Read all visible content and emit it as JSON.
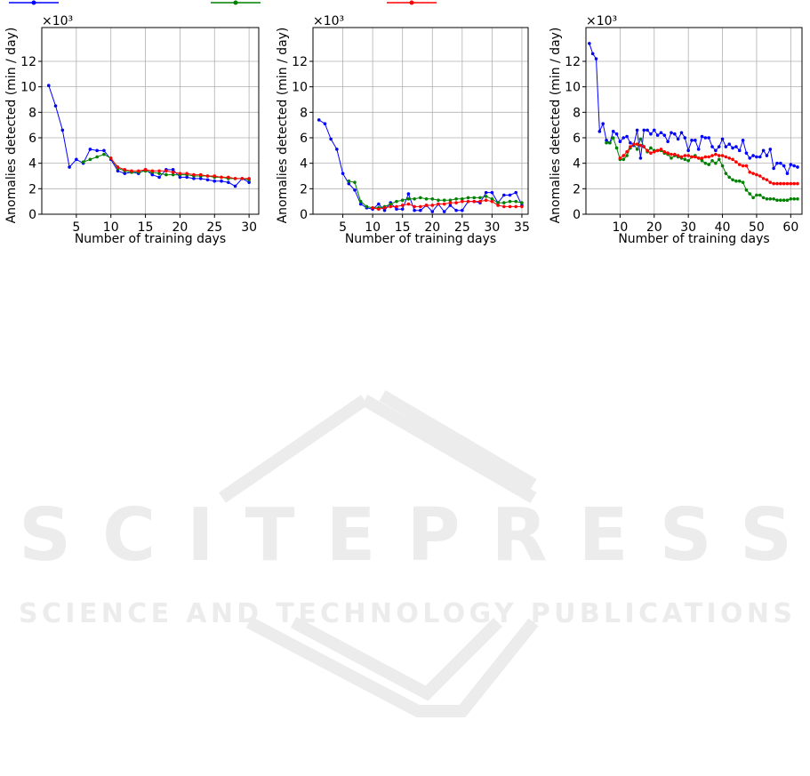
{
  "chart_data": [
    {
      "type": "line",
      "xlabel": "Number of training days",
      "ylabel": "Anomalies detected (min / day)",
      "y_offset_label": "×10³",
      "x": [
        1,
        2,
        3,
        4,
        5,
        6,
        7,
        8,
        9,
        10,
        11,
        12,
        13,
        14,
        15,
        16,
        17,
        18,
        19,
        20,
        21,
        22,
        23,
        24,
        25,
        26,
        27,
        28,
        29,
        30
      ],
      "series": [
        {
          "color": "#0000ff",
          "values": [
            10.1,
            8.5,
            6.6,
            3.7,
            4.3,
            4.0,
            5.1,
            5.0,
            5.0,
            4.3,
            3.4,
            3.2,
            3.3,
            3.2,
            3.5,
            3.1,
            2.9,
            3.5,
            3.5,
            2.9,
            2.9,
            2.8,
            2.8,
            2.7,
            2.6,
            2.6,
            2.5,
            2.2,
            2.8,
            2.5
          ]
        },
        {
          "color": "#008000",
          "values": [
            null,
            null,
            null,
            null,
            null,
            4.1,
            4.3,
            4.5,
            4.7,
            4.4,
            3.6,
            3.4,
            3.3,
            3.3,
            3.4,
            3.3,
            3.2,
            3.1,
            3.1,
            3.1,
            3.1,
            3.0,
            3.0,
            3.0,
            2.9,
            2.9,
            2.8,
            2.8,
            2.8,
            2.7
          ]
        },
        {
          "color": "#ff0000",
          "values": [
            null,
            null,
            null,
            null,
            null,
            null,
            null,
            null,
            null,
            4.4,
            3.7,
            3.5,
            3.4,
            3.4,
            3.5,
            3.4,
            3.4,
            3.4,
            3.3,
            3.2,
            3.2,
            3.1,
            3.1,
            3.0,
            3.0,
            2.9,
            2.9,
            2.8,
            2.8,
            2.8
          ]
        }
      ],
      "xlim": [
        0,
        31.4
      ],
      "xticks": [
        5,
        10,
        15,
        20,
        25,
        30
      ],
      "ylim": [
        0,
        14.65
      ],
      "yticks": [
        0,
        2,
        4,
        6,
        8,
        10,
        12
      ],
      "grid": true
    },
    {
      "type": "line",
      "xlabel": "Number of training days",
      "ylabel": "Anomalies detected (min / day)",
      "y_offset_label": "×10³",
      "x": [
        1,
        2,
        3,
        4,
        5,
        6,
        7,
        8,
        9,
        10,
        11,
        12,
        13,
        14,
        15,
        16,
        17,
        18,
        19,
        20,
        21,
        22,
        23,
        24,
        25,
        26,
        27,
        28,
        29,
        30,
        31,
        32,
        33,
        34,
        35
      ],
      "series": [
        {
          "color": "#0000ff",
          "values": [
            7.4,
            7.1,
            5.9,
            5.1,
            3.2,
            2.4,
            1.9,
            0.8,
            0.5,
            0.4,
            0.8,
            0.3,
            0.9,
            0.4,
            0.4,
            1.6,
            0.3,
            0.3,
            0.7,
            0.2,
            0.8,
            0.2,
            0.7,
            0.3,
            0.3,
            1.0,
            1.0,
            0.9,
            1.7,
            1.7,
            0.9,
            1.5,
            1.5,
            1.7,
            0.7
          ]
        },
        {
          "color": "#008000",
          "values": [
            null,
            null,
            null,
            null,
            null,
            2.6,
            2.5,
            1.0,
            0.6,
            0.5,
            0.5,
            0.6,
            0.8,
            1.0,
            1.1,
            1.2,
            1.2,
            1.3,
            1.2,
            1.2,
            1.1,
            1.1,
            1.1,
            1.2,
            1.2,
            1.3,
            1.3,
            1.3,
            1.4,
            1.2,
            0.9,
            0.9,
            1.0,
            1.0,
            0.9
          ]
        },
        {
          "color": "#ff0000",
          "values": [
            null,
            null,
            null,
            null,
            null,
            null,
            null,
            null,
            null,
            0.5,
            0.4,
            0.5,
            0.6,
            0.6,
            0.7,
            0.8,
            0.6,
            0.6,
            0.7,
            0.7,
            0.8,
            0.8,
            0.9,
            0.9,
            1.0,
            1.0,
            1.0,
            1.0,
            1.1,
            1.0,
            0.7,
            0.6,
            0.6,
            0.6,
            0.6
          ]
        }
      ],
      "xlim": [
        0,
        36.05
      ],
      "xticks": [
        5,
        10,
        15,
        20,
        25,
        30,
        35
      ],
      "ylim": [
        0,
        14.65
      ],
      "yticks": [
        0,
        2,
        4,
        6,
        8,
        10,
        12
      ],
      "grid": true
    },
    {
      "type": "line",
      "xlabel": "Number of training days",
      "ylabel": "Anomalies detected (min / day)",
      "y_offset_label": "×10³",
      "x": [
        1,
        2,
        3,
        4,
        5,
        6,
        7,
        8,
        9,
        10,
        11,
        12,
        13,
        14,
        15,
        16,
        17,
        18,
        19,
        20,
        21,
        22,
        23,
        24,
        25,
        26,
        27,
        28,
        29,
        30,
        31,
        32,
        33,
        34,
        35,
        36,
        37,
        38,
        39,
        40,
        41,
        42,
        43,
        44,
        45,
        46,
        47,
        48,
        49,
        50,
        51,
        52,
        53,
        54,
        55,
        56,
        57,
        58,
        59,
        60,
        61,
        62
      ],
      "series": [
        {
          "color": "#0000ff",
          "values": [
            13.4,
            12.6,
            12.2,
            6.5,
            7.1,
            5.8,
            5.6,
            6.5,
            6.3,
            5.7,
            6.0,
            6.1,
            5.6,
            5.4,
            6.6,
            4.4,
            6.6,
            6.6,
            6.3,
            6.6,
            6.2,
            6.4,
            6.2,
            5.7,
            6.4,
            6.3,
            5.9,
            6.4,
            6.0,
            5.0,
            5.8,
            5.8,
            5.1,
            6.1,
            6.0,
            6.0,
            5.3,
            5.0,
            5.3,
            5.9,
            5.3,
            5.5,
            5.2,
            5.3,
            5.0,
            5.8,
            4.8,
            4.4,
            4.6,
            4.5,
            4.5,
            5.0,
            4.6,
            5.1,
            3.6,
            4.0,
            4.0,
            3.8,
            3.2,
            3.9,
            3.8,
            3.7
          ]
        },
        {
          "color": "#008000",
          "values": [
            null,
            null,
            null,
            null,
            null,
            5.6,
            5.6,
            6.0,
            5.2,
            4.3,
            4.3,
            4.6,
            5.2,
            5.5,
            5.1,
            5.9,
            5.3,
            4.9,
            5.2,
            5.0,
            5.0,
            5.0,
            4.8,
            4.7,
            4.4,
            4.6,
            4.5,
            4.4,
            4.3,
            4.2,
            4.5,
            4.6,
            4.4,
            4.2,
            4.0,
            3.9,
            4.2,
            4.0,
            4.3,
            3.8,
            3.2,
            2.9,
            2.7,
            2.6,
            2.6,
            2.5,
            1.9,
            1.6,
            1.3,
            1.5,
            1.5,
            1.3,
            1.2,
            1.2,
            1.2,
            1.1,
            1.1,
            1.1,
            1.1,
            1.2,
            1.2,
            1.2
          ]
        },
        {
          "color": "#ff0000",
          "values": [
            null,
            null,
            null,
            null,
            null,
            null,
            null,
            null,
            null,
            4.4,
            4.6,
            4.9,
            5.3,
            5.5,
            5.5,
            5.4,
            5.3,
            5.0,
            4.8,
            4.9,
            5.0,
            5.1,
            4.9,
            4.8,
            4.7,
            4.7,
            4.6,
            4.5,
            4.6,
            4.6,
            4.5,
            4.5,
            4.4,
            4.4,
            4.5,
            4.5,
            4.6,
            4.7,
            4.6,
            4.6,
            4.5,
            4.4,
            4.3,
            4.1,
            3.9,
            3.8,
            3.8,
            3.3,
            3.2,
            3.1,
            3.0,
            2.8,
            2.7,
            2.5,
            2.4,
            2.4,
            2.4,
            2.4,
            2.4,
            2.4,
            2.4,
            2.4
          ]
        }
      ],
      "xlim": [
        0,
        63.3
      ],
      "xticks": [
        10,
        20,
        30,
        40,
        50,
        60
      ],
      "ylim": [
        0,
        14.65
      ],
      "yticks": [
        0,
        2,
        4,
        6,
        8,
        10,
        12
      ],
      "grid": true
    }
  ],
  "watermark": {
    "title": "SCITEPRESS",
    "subtitle": "SCIENCE AND TECHNOLOGY PUBLICATIONS"
  }
}
